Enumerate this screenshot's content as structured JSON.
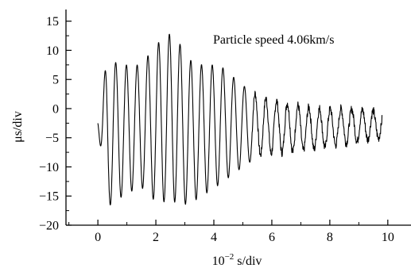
{
  "chart_data": {
    "type": "line",
    "title": "",
    "annotation": "Particle speed 4.06km/s",
    "xlabel_base": "10",
    "xlabel_exp": "−2",
    "xlabel_rest": " s/div",
    "ylabel": "μs/div",
    "xlim": [
      -1.1,
      10.8
    ],
    "ylim": [
      -20,
      17
    ],
    "x_ticks": [
      0,
      2,
      4,
      6,
      8,
      10
    ],
    "x_tick_labels": [
      "0",
      "2",
      "4",
      "6",
      "8",
      "10"
    ],
    "y_ticks": [
      15,
      10,
      5,
      0,
      -5,
      -10,
      -15,
      -20
    ],
    "y_tick_labels": [
      "15",
      "10",
      "5",
      "0",
      "−5",
      "−10",
      "−15",
      "−20"
    ],
    "grid": false,
    "line_color": "#000000",
    "series": [
      {
        "oscillation_period": 0.37,
        "x_start": 0.0,
        "x_end": 9.8,
        "envelope_x": [
          0.0,
          0.3,
          1.0,
          1.5,
          2.0,
          2.6,
          3.1,
          3.6,
          4.2,
          5.0,
          5.6,
          6.5,
          7.5,
          8.5,
          9.8
        ],
        "envelope_upper": [
          -2.5,
          8.3,
          7.5,
          7.5,
          11.0,
          13.3,
          8.5,
          7.5,
          7.5,
          4.0,
          2.0,
          1.0,
          0.0,
          0.0,
          -0.5
        ],
        "envelope_lower": [
          -2.5,
          -17.0,
          -14.5,
          -13.5,
          -16.0,
          -16.0,
          -16.5,
          -15.0,
          -13.0,
          -10.0,
          -8.0,
          -7.5,
          -7.0,
          -6.0,
          -5.0
        ]
      }
    ]
  }
}
